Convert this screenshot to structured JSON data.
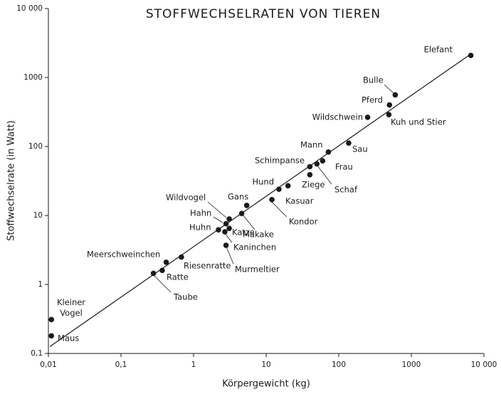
{
  "chart_data": {
    "type": "scatter",
    "title": "STOFFWECHSELRATEN VON TIEREN",
    "x_label": "Körpergewicht (kg)",
    "y_label": "Stoffwechselrate (in Watt)",
    "xscale": "log",
    "yscale": "log",
    "xlim": [
      0.01,
      10000
    ],
    "ylim": [
      0.1,
      10000
    ],
    "xticks": [
      {
        "value": 0.01,
        "label": "0,01"
      },
      {
        "value": 0.1,
        "label": "0,1"
      },
      1,
      10,
      100,
      1000,
      {
        "value": 10000,
        "label": "10 000"
      }
    ],
    "yticks": [
      {
        "value": 0.1,
        "label": "0,1"
      },
      1,
      10,
      100,
      1000,
      {
        "value": 10000,
        "label": "10 000"
      }
    ],
    "color": "#1a1a1a",
    "trend_line": {
      "x": [
        0.0105,
        6600
      ],
      "y": [
        0.126,
        2190
      ]
    },
    "points": [
      {
        "label": "Elefant",
        "x": 6600,
        "y": 2090
      },
      {
        "label": "Bulle",
        "x": 600,
        "y": 560
      },
      {
        "label": "Pferd",
        "x": 500,
        "y": 400
      },
      {
        "label": "Kuh und Stier",
        "x": 490,
        "y": 290
      },
      {
        "label": "Wildschwein",
        "x": 250,
        "y": 265
      },
      {
        "label": "Sau",
        "x": 137,
        "y": 112
      },
      {
        "label": "Mann",
        "x": 72,
        "y": 83
      },
      {
        "label": "Frau",
        "x": 60,
        "y": 62
      },
      {
        "label": "Schimpanse",
        "x": 40,
        "y": 51
      },
      {
        "label": "Schaf",
        "x": 50,
        "y": 56
      },
      {
        "label": "Ziege",
        "x": 40,
        "y": 39
      },
      {
        "label": "Hund",
        "x": 15,
        "y": 24
      },
      {
        "label": "Kasuar",
        "x": 20,
        "y": 27
      },
      {
        "label": "Kondor",
        "x": 12,
        "y": 17
      },
      {
        "label": "Gans",
        "x": 5.4,
        "y": 14
      },
      {
        "label": "Makake",
        "x": 4.6,
        "y": 10.7
      },
      {
        "label": "Wildvogel",
        "x": 3.1,
        "y": 8.9
      },
      {
        "label": "Hahn",
        "x": 2.8,
        "y": 7.6
      },
      {
        "label": "Katze",
        "x": 3.1,
        "y": 6.5
      },
      {
        "label": "Huhn",
        "x": 2.2,
        "y": 6.2
      },
      {
        "label": "Kaninchen",
        "x": 2.7,
        "y": 5.8
      },
      {
        "label": "Murmeltier",
        "x": 2.8,
        "y": 3.7
      },
      {
        "label": "Riesenratte",
        "x": 0.68,
        "y": 2.5
      },
      {
        "label": "Meerschweinchen",
        "x": 0.42,
        "y": 2.1
      },
      {
        "label": "Ratte",
        "x": 0.37,
        "y": 1.6
      },
      {
        "label": "Taube",
        "x": 0.28,
        "y": 1.45
      },
      {
        "label": "Kleiner Vogel",
        "x": 0.011,
        "y": 0.31
      },
      {
        "label": "Maus",
        "x": 0.011,
        "y": 0.18
      }
    ]
  }
}
